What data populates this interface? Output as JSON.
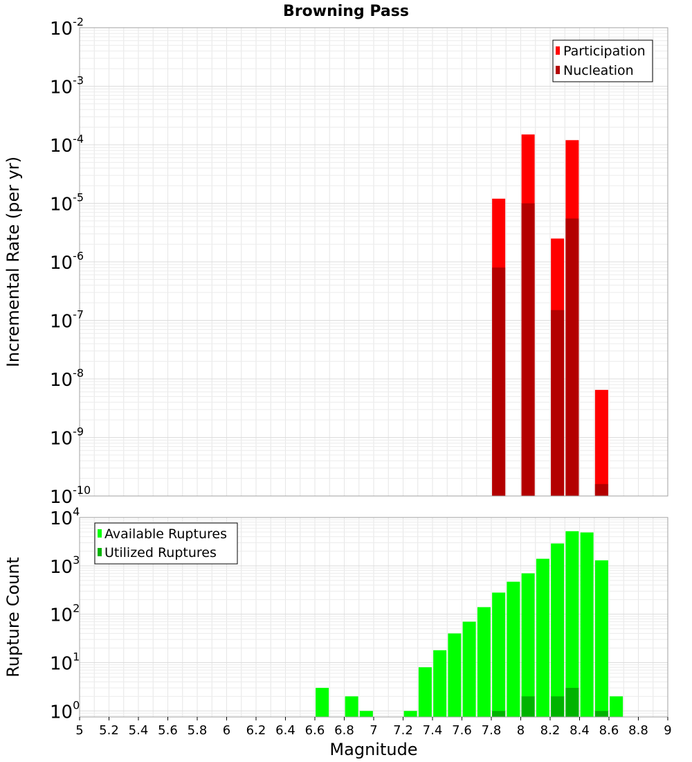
{
  "chart_data": [
    {
      "type": "bar",
      "title": "Browning Pass",
      "ylabel": "Incremental Rate (per yr)",
      "xlabel": "",
      "yscale": "log",
      "ylim": [
        1e-10,
        0.01
      ],
      "xlim": [
        5,
        9
      ],
      "y_tick_exponents": [
        -10,
        -9,
        -8,
        -7,
        -6,
        -5,
        -4,
        -3,
        -2
      ],
      "y_tick_base": "10",
      "y_tick_exp_labels": [
        "-10",
        "-9",
        "-8",
        "-7",
        "-6",
        "-5",
        "-4",
        "-3",
        "-2"
      ],
      "legend_position": "top-right",
      "legend": [
        "Participation",
        "Nucleation"
      ],
      "colors": {
        "Participation": "#ff0000",
        "Nucleation": "#b30000"
      },
      "series": [
        {
          "name": "Participation",
          "x": [
            7.85,
            8.05,
            8.25,
            8.35,
            8.55
          ],
          "values": [
            1.2e-05,
            0.00015,
            2.5e-06,
            0.00012,
            6.5e-09
          ]
        },
        {
          "name": "Nucleation",
          "x": [
            7.85,
            8.05,
            8.25,
            8.35,
            8.55
          ],
          "values": [
            8e-07,
            1e-05,
            1.5e-07,
            5.5e-06,
            1.6e-10
          ]
        }
      ]
    },
    {
      "type": "bar",
      "title": "",
      "ylabel": "Rupture Count",
      "xlabel": "Magnitude",
      "yscale": "log",
      "ylim": [
        0.75,
        10000
      ],
      "xlim": [
        5,
        9
      ],
      "y_tick_exponents": [
        0,
        1,
        2,
        3,
        4
      ],
      "y_tick_base": "10",
      "y_tick_exp_labels": [
        "0",
        "1",
        "2",
        "3",
        "4"
      ],
      "x_ticks": [
        "5",
        "5.2",
        "5.4",
        "5.6",
        "5.8",
        "6",
        "6.2",
        "6.4",
        "6.6",
        "6.8",
        "7",
        "7.2",
        "7.4",
        "7.6",
        "7.8",
        "8",
        "8.2",
        "8.4",
        "8.6",
        "8.8",
        "9"
      ],
      "legend_position": "top-left",
      "legend": [
        "Available Ruptures",
        "Utilized Ruptures"
      ],
      "colors": {
        "Available Ruptures": "#00ff00",
        "Utilized Ruptures": "#00b300"
      },
      "series": [
        {
          "name": "Available Ruptures",
          "x": [
            6.65,
            6.85,
            6.95,
            7.25,
            7.35,
            7.45,
            7.55,
            7.65,
            7.75,
            7.85,
            7.95,
            8.05,
            8.15,
            8.25,
            8.35,
            8.45,
            8.55,
            8.65
          ],
          "values": [
            3,
            2,
            1,
            1,
            8,
            18,
            40,
            70,
            140,
            280,
            470,
            700,
            1400,
            2900,
            5200,
            4900,
            1300,
            2
          ]
        },
        {
          "name": "Utilized Ruptures",
          "x": [
            7.85,
            8.05,
            8.25,
            8.35,
            8.55
          ],
          "values": [
            1,
            2,
            2,
            3,
            1
          ]
        }
      ]
    }
  ]
}
